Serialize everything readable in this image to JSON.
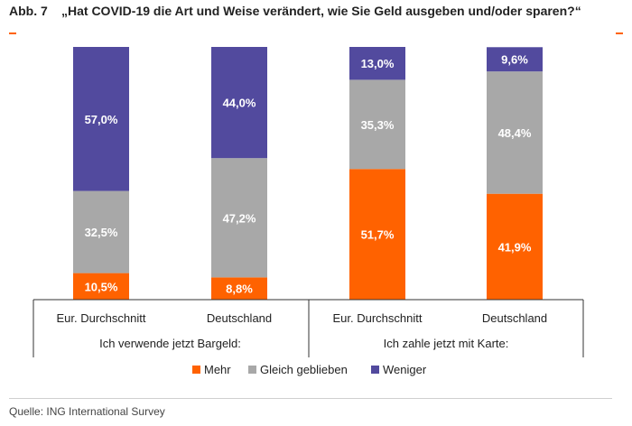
{
  "header": {
    "figure_label": "Abb. 7",
    "title": "„Hat COVID-19 die Art und Weise verändert, wie Sie Geld ausgeben und/oder sparen?“"
  },
  "source": "Quelle: ING International Survey",
  "colors": {
    "mehr": "#ff6200",
    "gleich": "#a8a8a8",
    "weniger": "#524a9e",
    "accent": "#ff6200"
  },
  "chart_data": {
    "type": "bar",
    "stacked": true,
    "ylim": [
      0,
      100
    ],
    "categories": [
      "Eur. Durchschnitt",
      "Deutschland",
      "Eur. Durchschnitt",
      "Deutschland"
    ],
    "groups": [
      {
        "label": "Ich verwende jetzt Bargeld:",
        "categories": [
          0,
          1
        ]
      },
      {
        "label": "Ich zahle jetzt mit Karte:",
        "categories": [
          2,
          3
        ]
      }
    ],
    "series": [
      {
        "name": "Mehr",
        "color": "#ff6200",
        "values": [
          10.5,
          8.8,
          51.7,
          41.9
        ],
        "labels": [
          "10,5%",
          "8,8%",
          "51,7%",
          "41,9%"
        ]
      },
      {
        "name": "Gleich geblieben",
        "color": "#a8a8a8",
        "values": [
          32.5,
          47.2,
          35.3,
          48.4
        ],
        "labels": [
          "32,5%",
          "47,2%",
          "35,3%",
          "48,4%"
        ]
      },
      {
        "name": "Weniger",
        "color": "#524a9e",
        "values": [
          57.0,
          44.0,
          13.0,
          9.6
        ],
        "labels": [
          "57,0%",
          "44,0%",
          "13,0%",
          "9,6%"
        ]
      }
    ],
    "legend_position": "bottom",
    "grid": false
  }
}
